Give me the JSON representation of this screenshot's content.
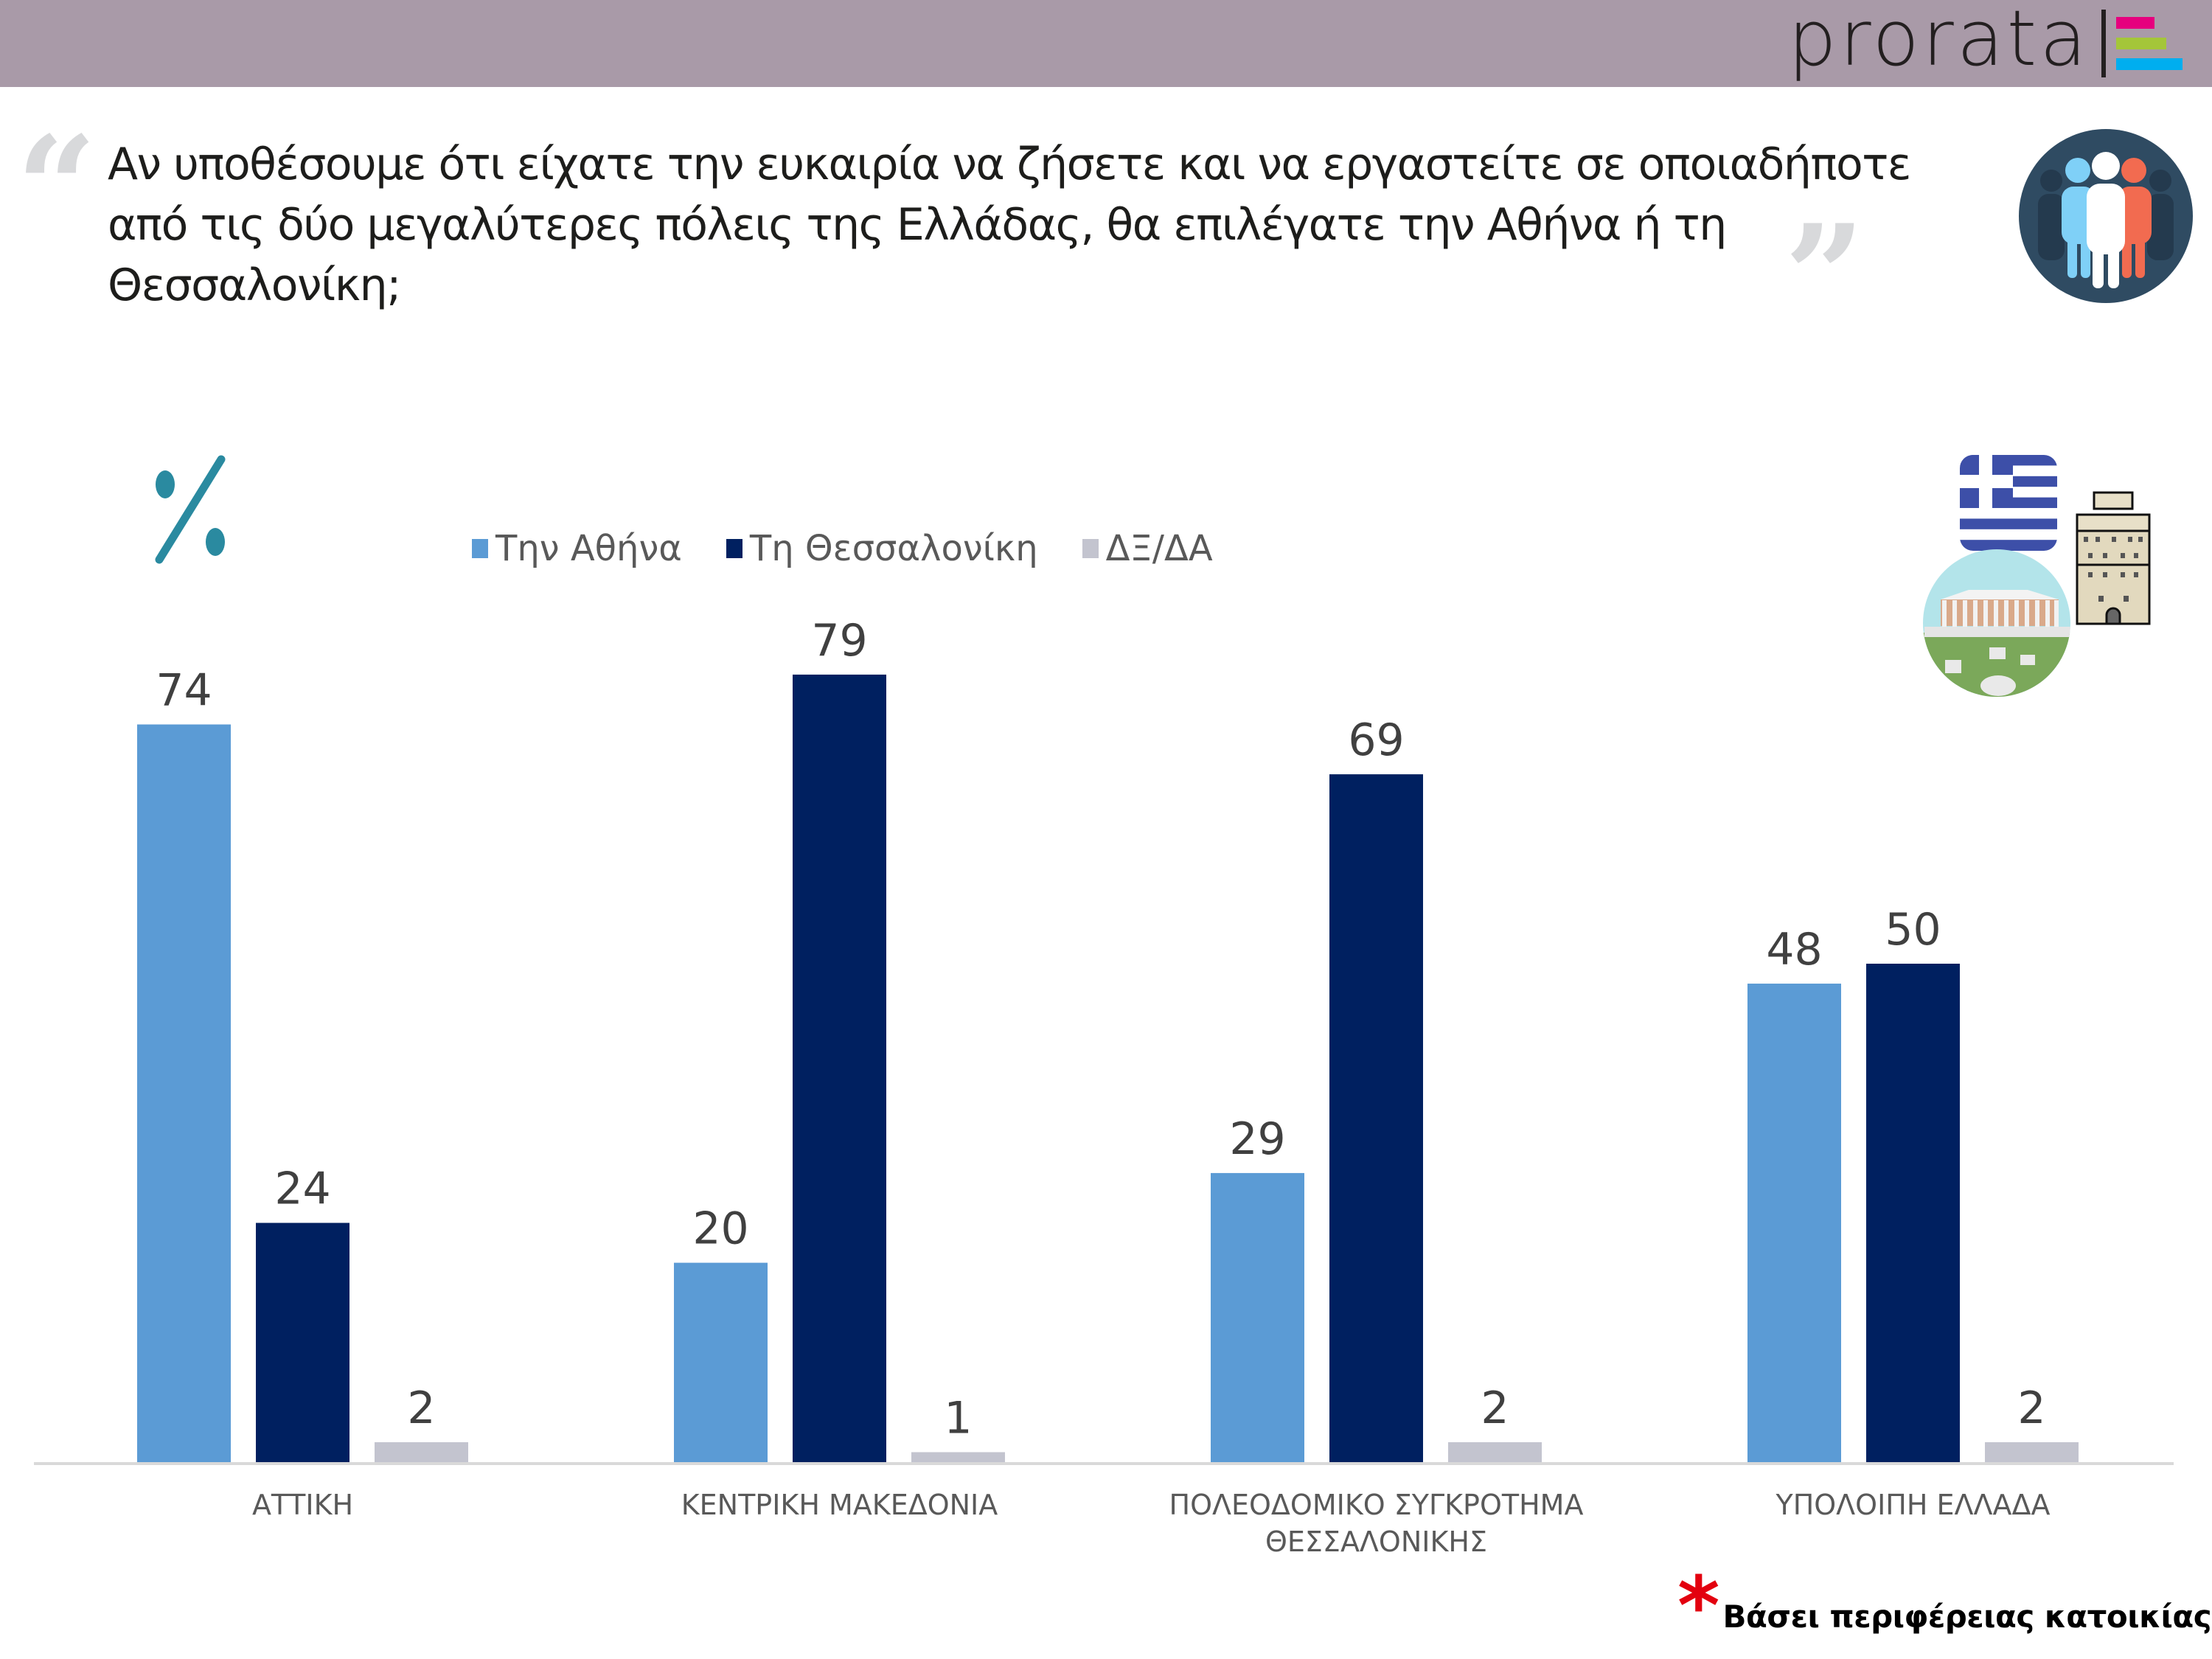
{
  "header": {
    "brand": "prorata",
    "brand_bar_colors": [
      "#e6007e",
      "#a4c639",
      "#00aeef"
    ],
    "band_color": "#a99aa8"
  },
  "question": {
    "open_quote": "“",
    "close_quote": "”",
    "text": "Αν υποθέσουμε ότι είχατε την ευκαιρία να ζήσετε και να εργαστείτε σε οποιαδήποτε από τις δύο μεγαλύτερες πόλεις της Ελλάδας, θα επιλέγατε την Αθήνα ή τη Θεσσαλονίκη;"
  },
  "icons": {
    "people": "people-group-icon",
    "percent": "percent-icon",
    "greek_flag": "greek-flag-icon",
    "parthenon": "parthenon-icon",
    "white_tower": "white-tower-icon"
  },
  "footnote": {
    "marker": "*",
    "text": "Βάσει περιφέρειας κατοικίας"
  },
  "chart_data": {
    "type": "bar",
    "title": "",
    "unit_label": "%",
    "xlabel": "",
    "ylabel": "",
    "ylim": [
      0,
      80
    ],
    "grid": false,
    "legend_position": "top-left",
    "categories": [
      [
        "ΑΤΤΙΚΗ"
      ],
      [
        "ΚΕΝΤΡΙΚΗ ΜΑΚΕΔΟΝΙΑ"
      ],
      [
        "ΠΟΛΕΟΔΟΜΙΚΟ ΣΥΓΚΡΟΤΗΜΑ",
        "ΘΕΣΣΑΛΟΝΙΚΗΣ"
      ],
      [
        "ΥΠΟΛΟΙΠΗ ΕΛΛΑΔΑ"
      ]
    ],
    "series": [
      {
        "name": "Την Αθήνα",
        "color": "#5b9bd5",
        "values": [
          74,
          20,
          29,
          48
        ]
      },
      {
        "name": "Τη Θεσσαλονίκη",
        "color": "#002060",
        "values": [
          24,
          79,
          69,
          50
        ]
      },
      {
        "name": "ΔΞ/ΔΑ",
        "color": "#c3c4cf",
        "values": [
          2,
          1,
          2,
          2
        ]
      }
    ]
  }
}
